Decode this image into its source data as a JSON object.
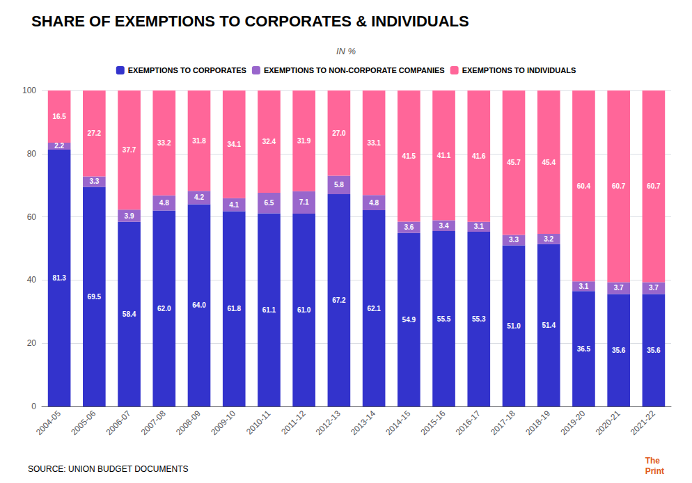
{
  "chart_data": {
    "type": "bar",
    "title": "SHARE OF EXEMPTIONS TO CORPORATES & INDIVIDUALS",
    "subtitle": "IN %",
    "source": "SOURCE: UNION BUDGET DOCUMENTS",
    "annotations": [
      "The",
      "Print"
    ],
    "categories": [
      "2004-05",
      "2005-06",
      "2006-07",
      "2007-08",
      "2008-09",
      "2009-10",
      "2010-11",
      "2011-12",
      "2012-13",
      "2013-14",
      "2014-15",
      "2015-16",
      "2016-17",
      "2017-18",
      "2018-19",
      "2019-20",
      "2020-21",
      "2021-22"
    ],
    "series": [
      {
        "name": "EXEMPTIONS TO CORPORATES",
        "color": "#3333cc",
        "values": [
          81.3,
          69.5,
          58.4,
          62.0,
          64.0,
          61.8,
          61.1,
          61.0,
          67.2,
          62.1,
          54.9,
          55.5,
          55.3,
          51.0,
          51.4,
          36.5,
          35.6,
          35.6
        ],
        "value_labels": [
          "81.3",
          "69.5",
          "58.4",
          "62.0",
          "64.0",
          "61.8",
          "61.1",
          "61.0",
          "67.2",
          "62.1",
          "54.9",
          "55.5",
          "55.3",
          "51.0",
          "51.4",
          "36.5",
          "35.6",
          "35.6"
        ]
      },
      {
        "name": "EXEMPTIONS TO NON-CORPORATE COMPANIES",
        "color": "#9966cc",
        "values": [
          2.2,
          3.3,
          3.9,
          4.8,
          4.2,
          4.1,
          6.5,
          7.1,
          5.8,
          4.8,
          3.6,
          3.4,
          3.1,
          3.3,
          3.2,
          3.1,
          3.7,
          3.7
        ],
        "value_labels": [
          "2.2",
          "3.3",
          "3.9",
          "4.8",
          "4.2",
          "4.1",
          "6.5",
          "7.1",
          "5.8",
          "4.8",
          "3.6",
          "3.4",
          "3.1",
          "3.3",
          "3.2",
          "3.1",
          "3.7",
          "3.7"
        ]
      },
      {
        "name": "EXEMPTIONS TO INDIVIDUALS",
        "color": "#ff6699",
        "values": [
          16.5,
          27.2,
          37.7,
          33.2,
          31.8,
          34.1,
          32.4,
          31.9,
          27.0,
          33.1,
          41.5,
          41.1,
          41.6,
          45.7,
          45.4,
          60.4,
          60.7,
          60.7
        ],
        "value_labels": [
          "16.5",
          "27.2",
          "37.7",
          "33.2",
          "31.8",
          "34.1",
          "32.4",
          "31.9",
          "27.0",
          "33.1",
          "41.5",
          "41.1",
          "41.6",
          "45.7",
          "45.4",
          "60.4",
          "60.7",
          "60.7"
        ]
      }
    ],
    "ylim": [
      0,
      100
    ],
    "yticks": [
      0,
      20,
      40,
      60,
      80,
      100
    ],
    "grid": true,
    "stacked": true,
    "data_labels": true,
    "legend": "top"
  }
}
